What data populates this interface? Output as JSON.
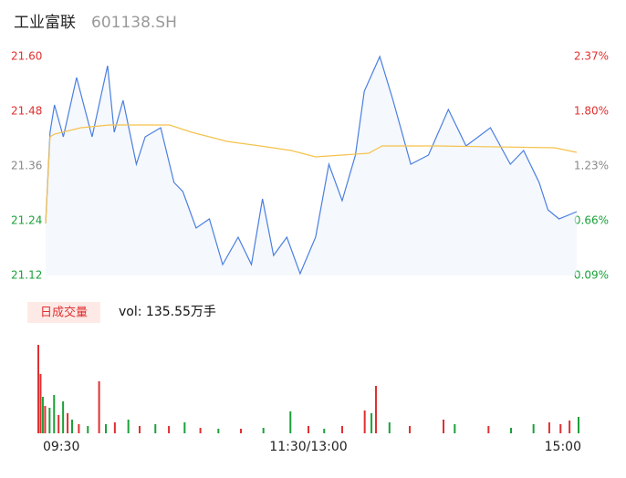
{
  "header": {
    "name": "工业富联",
    "code": "601138.SH"
  },
  "chart_data": {
    "type": "line",
    "xlim": [
      0,
      240
    ],
    "xticks": [
      {
        "value": 0,
        "label": "09:30"
      },
      {
        "value": 120,
        "label": "11:30/13:00"
      },
      {
        "value": 240,
        "label": "15:00"
      }
    ],
    "ylim": [
      21.12,
      21.6
    ],
    "yticks": [
      21.12,
      21.24,
      21.36,
      21.48,
      {
        "value": 21.6,
        "label": "21.60"
      }
    ],
    "y2lim": [
      0.09,
      2.37
    ],
    "y2ticks": [
      {
        "value": 0.09,
        "label": "0.09%"
      },
      {
        "value": 0.66,
        "label": "0.66%"
      },
      {
        "value": 1.23,
        "label": "1.23%"
      },
      {
        "value": 1.8,
        "label": "1.80%"
      },
      {
        "value": 2.37,
        "label": "2.37%"
      }
    ],
    "series": [
      {
        "color": "#4a7fe0",
        "x": [
          0,
          2,
          4,
          8,
          14,
          21,
          28,
          31,
          35,
          41,
          45,
          52,
          58,
          62,
          68,
          74,
          80,
          87,
          93,
          98,
          103,
          109,
          115,
          122,
          128,
          134,
          140,
          144,
          151,
          157,
          165,
          173,
          182,
          190,
          201,
          210,
          216,
          223,
          227,
          232,
          240
        ],
        "values": [
          21.234,
          21.434,
          21.494,
          21.424,
          21.554,
          21.424,
          21.58,
          21.434,
          21.504,
          21.364,
          21.424,
          21.444,
          21.324,
          21.304,
          21.224,
          21.244,
          21.144,
          21.204,
          21.144,
          21.288,
          21.164,
          21.204,
          21.124,
          21.204,
          21.364,
          21.284,
          21.384,
          21.524,
          21.6,
          21.504,
          21.364,
          21.384,
          21.484,
          21.404,
          21.444,
          21.364,
          21.394,
          21.324,
          21.264,
          21.244,
          21.26
        ]
      },
      {
        "color": "#f5c24c",
        "x": [
          0,
          2,
          4,
          16,
          29,
          56,
          66,
          82,
          97,
          111,
          122,
          146,
          152,
          177,
          230,
          240
        ],
        "values": [
          21.234,
          21.424,
          21.43,
          21.444,
          21.45,
          21.45,
          21.434,
          21.414,
          21.404,
          21.394,
          21.38,
          21.388,
          21.404,
          21.404,
          21.4,
          21.39
        ]
      }
    ],
    "volume": {
      "label": "日成交量",
      "total": "vol: 135.55万手",
      "ylim": [
        0,
        100
      ],
      "x": [
        0,
        1,
        2,
        3,
        5,
        7,
        9,
        11,
        13,
        15,
        18,
        22,
        27,
        30,
        34,
        40,
        45,
        52,
        58,
        65,
        72,
        80,
        90,
        100,
        112,
        120,
        127,
        135,
        145,
        148,
        150,
        156,
        165,
        180,
        185,
        200,
        210,
        220,
        227,
        232,
        236,
        240
      ],
      "values": [
        97,
        65,
        40,
        30,
        28,
        42,
        20,
        35,
        22,
        15,
        10,
        8,
        57,
        10,
        12,
        15,
        8,
        10,
        8,
        12,
        6,
        5,
        5,
        6,
        24,
        8,
        5,
        8,
        25,
        22,
        52,
        12,
        8,
        15,
        10,
        8,
        6,
        10,
        12,
        10,
        14,
        18
      ],
      "colors": [
        "#e03030",
        "#e03030",
        "#1aa13a",
        "#e03030",
        "#1aa13a",
        "#1aa13a",
        "#e03030",
        "#1aa13a",
        "#e03030",
        "#1aa13a",
        "#e03030",
        "#1aa13a",
        "#e03030",
        "#1aa13a",
        "#e03030",
        "#1aa13a",
        "#e03030",
        "#1aa13a",
        "#e03030",
        "#1aa13a",
        "#e03030",
        "#1aa13a",
        "#e03030",
        "#1aa13a",
        "#1aa13a",
        "#e03030",
        "#1aa13a",
        "#e03030",
        "#e03030",
        "#1aa13a",
        "#e03030",
        "#1aa13a",
        "#e03030",
        "#e03030",
        "#1aa13a",
        "#e03030",
        "#1aa13a",
        "#1aa13a",
        "#e03030",
        "#e03030",
        "#e03030",
        "#1aa13a"
      ]
    }
  }
}
